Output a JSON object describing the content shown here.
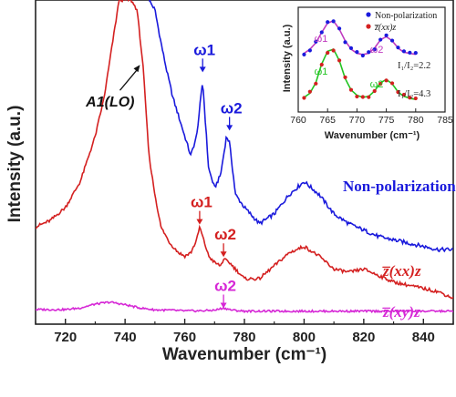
{
  "chart_data": [
    {
      "type": "line",
      "xlabel": "Wavenumber (cm⁻¹)",
      "ylabel": "Intensity (a.u.)",
      "xlim": [
        710,
        850
      ],
      "ylim": [
        0,
        1
      ],
      "x_ticks": [
        "720",
        "740",
        "760",
        "780",
        "800",
        "820",
        "840"
      ],
      "series": [
        {
          "name": "Non-polarization",
          "color": "#1a1adc",
          "x": [
            748,
            750,
            752,
            754,
            756,
            758,
            760,
            762,
            764,
            766,
            768,
            770,
            772,
            774,
            775,
            777,
            780,
            785,
            790,
            795,
            800,
            805,
            810,
            815,
            820,
            825,
            830,
            835,
            840,
            845,
            850
          ],
          "y": [
            1.0,
            0.97,
            0.87,
            0.78,
            0.7,
            0.64,
            0.58,
            0.52,
            0.58,
            0.75,
            0.48,
            0.42,
            0.46,
            0.58,
            0.56,
            0.4,
            0.36,
            0.31,
            0.34,
            0.4,
            0.44,
            0.4,
            0.34,
            0.31,
            0.29,
            0.27,
            0.26,
            0.25,
            0.24,
            0.23,
            0.23
          ]
        },
        {
          "name": "z̅(xx)z",
          "color": "#d42020",
          "x": [
            710,
            715,
            720,
            725,
            730,
            733,
            735,
            738,
            740,
            742,
            744,
            746,
            748,
            750,
            752,
            755,
            758,
            760,
            762,
            764,
            765,
            766,
            768,
            770,
            772,
            773,
            775,
            778,
            780,
            785,
            790,
            795,
            800,
            805,
            810,
            815,
            820,
            825,
            830,
            835,
            840,
            845,
            850
          ],
          "y": [
            0.3,
            0.32,
            0.36,
            0.44,
            0.58,
            0.7,
            0.82,
            1.0,
            1.0,
            1.0,
            0.97,
            0.8,
            0.52,
            0.4,
            0.3,
            0.25,
            0.22,
            0.21,
            0.22,
            0.26,
            0.3,
            0.27,
            0.21,
            0.19,
            0.18,
            0.2,
            0.19,
            0.16,
            0.14,
            0.14,
            0.18,
            0.22,
            0.24,
            0.21,
            0.17,
            0.16,
            0.17,
            0.15,
            0.13,
            0.12,
            0.11,
            0.1,
            0.08
          ]
        },
        {
          "name": "z̅(xy)z",
          "color": "#d628d6",
          "x": [
            710,
            720,
            725,
            730,
            735,
            740,
            745,
            750,
            755,
            760,
            765,
            770,
            773,
            776,
            780,
            790,
            800,
            810,
            820,
            830,
            840,
            850
          ],
          "y": [
            0.045,
            0.045,
            0.05,
            0.062,
            0.068,
            0.06,
            0.05,
            0.044,
            0.043,
            0.041,
            0.041,
            0.043,
            0.05,
            0.043,
            0.04,
            0.04,
            0.04,
            0.04,
            0.04,
            0.04,
            0.04,
            0.04
          ]
        }
      ],
      "annotations": [
        {
          "text": "A1(LO)",
          "x": 745,
          "y": 0.8
        },
        {
          "text": "ω1",
          "x": 766,
          "y": 0.78,
          "series": "Non-polarization"
        },
        {
          "text": "ω2",
          "x": 775,
          "y": 0.6,
          "series": "Non-polarization"
        },
        {
          "text": "ω1",
          "x": 765,
          "y": 0.31,
          "series": "z̅(xx)z"
        },
        {
          "text": "ω2",
          "x": 773,
          "y": 0.21,
          "series": "z̅(xx)z"
        },
        {
          "text": "ω2",
          "x": 773,
          "y": 0.052,
          "series": "z̅(xy)z"
        }
      ],
      "legend_placement": "inline-right"
    },
    {
      "type": "scatter",
      "placement": "top-right-inset",
      "xlabel": "Wavenumber (cm⁻¹)",
      "ylabel": "Intensity (a.u.)",
      "xlim": [
        760,
        785
      ],
      "ylim": [
        0,
        1
      ],
      "x_ticks": [
        "760",
        "765",
        "770",
        "775",
        "780",
        "785"
      ],
      "legend": [
        "Non-polarization",
        "z̅(xx)z"
      ],
      "annotations": [
        "I₁/I₂=2.2",
        "I₁/I₂=4.3",
        "ω1",
        "ω2"
      ],
      "series": [
        {
          "name": "Non-polarization",
          "color": "#1a1adc",
          "fit_color": "#c03cc0",
          "x": [
            761,
            762,
            763,
            764,
            765,
            766,
            767,
            768,
            769,
            770,
            771,
            772,
            773,
            774,
            775,
            776,
            777,
            778,
            779,
            780
          ],
          "y": [
            0.56,
            0.6,
            0.66,
            0.76,
            0.85,
            0.87,
            0.79,
            0.68,
            0.6,
            0.56,
            0.55,
            0.56,
            0.61,
            0.69,
            0.72,
            0.68,
            0.61,
            0.57,
            0.56,
            0.55
          ]
        },
        {
          "name": "z̅(xx)z",
          "color": "#d42020",
          "fit_color": "#22c422",
          "x": [
            761,
            762,
            763,
            764,
            765,
            766,
            767,
            768,
            769,
            770,
            771,
            772,
            773,
            774,
            775,
            776,
            777,
            778,
            779,
            780
          ],
          "y": [
            0.14,
            0.18,
            0.28,
            0.46,
            0.58,
            0.6,
            0.49,
            0.32,
            0.21,
            0.16,
            0.14,
            0.15,
            0.2,
            0.28,
            0.31,
            0.27,
            0.19,
            0.15,
            0.13,
            0.12
          ]
        }
      ]
    }
  ]
}
